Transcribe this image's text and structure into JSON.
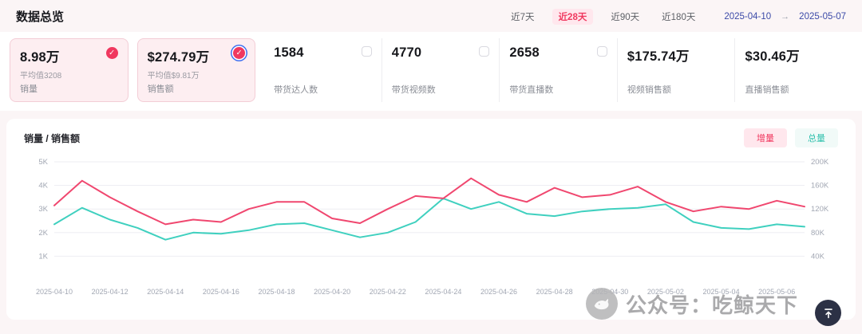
{
  "header": {
    "title": "数据总览",
    "ranges": [
      {
        "label": "近7天",
        "active": false
      },
      {
        "label": "近28天",
        "active": true
      },
      {
        "label": "近90天",
        "active": false
      },
      {
        "label": "近180天",
        "active": false
      }
    ],
    "date_start": "2025-04-10",
    "date_separator": "→",
    "date_end": "2025-05-07"
  },
  "cards": [
    {
      "value": "8.98万",
      "sub": "平均值3208",
      "label": "销量",
      "checked": true,
      "highlight": true
    },
    {
      "value": "$274.79万",
      "sub": "平均值$9.81万",
      "label": "销售额",
      "checked": true,
      "highlight": true
    },
    {
      "value": "1584",
      "sub": "",
      "label": "带货达人数",
      "checked": false,
      "highlight": false
    },
    {
      "value": "4770",
      "sub": "",
      "label": "带货视频数",
      "checked": false,
      "highlight": false
    },
    {
      "value": "2658",
      "sub": "",
      "label": "带货直播数",
      "checked": false,
      "highlight": false
    },
    {
      "value": "$175.74万",
      "sub": "",
      "label": "视频销售额",
      "checked": null,
      "highlight": false
    },
    {
      "value": "$30.46万",
      "sub": "",
      "label": "直播销售额",
      "checked": null,
      "highlight": false
    }
  ],
  "chart": {
    "title": "销量 / 销售额",
    "toggles": [
      {
        "label": "增量",
        "active": true
      },
      {
        "label": "总量",
        "active": false
      }
    ]
  },
  "chart_data": {
    "type": "line",
    "x": [
      "2025-04-10",
      "2025-04-11",
      "2025-04-12",
      "2025-04-13",
      "2025-04-14",
      "2025-04-15",
      "2025-04-16",
      "2025-04-17",
      "2025-04-18",
      "2025-04-19",
      "2025-04-20",
      "2025-04-21",
      "2025-04-22",
      "2025-04-23",
      "2025-04-24",
      "2025-04-25",
      "2025-04-26",
      "2025-04-27",
      "2025-04-28",
      "2025-04-29",
      "2025-04-30",
      "2025-05-01",
      "2025-05-02",
      "2025-05-03",
      "2025-05-04",
      "2025-05-05",
      "2025-05-06",
      "2025-05-07"
    ],
    "x_label_every": 2,
    "series": [
      {
        "name": "销量",
        "axis": "left",
        "color": "#f0476f",
        "values": [
          3150,
          4200,
          3500,
          2900,
          2350,
          2550,
          2450,
          3000,
          3300,
          3300,
          2600,
          2400,
          3000,
          3550,
          3450,
          4300,
          3600,
          3300,
          3900,
          3500,
          3600,
          3950,
          3300,
          2900,
          3100,
          3000,
          3350,
          3100
        ]
      },
      {
        "name": "销售额",
        "axis": "right",
        "color": "#3fd0bf",
        "values": [
          94000,
          122000,
          102000,
          88000,
          68000,
          80000,
          78000,
          84000,
          94000,
          96000,
          84000,
          72000,
          80000,
          98000,
          138000,
          120000,
          132000,
          112000,
          108000,
          116000,
          120000,
          122000,
          128000,
          98000,
          88000,
          86000,
          94000,
          90000
        ]
      }
    ],
    "left_axis": {
      "min": 0,
      "max": 5000,
      "ticks": [
        {
          "v": 1000,
          "label": "1K"
        },
        {
          "v": 2000,
          "label": "2K"
        },
        {
          "v": 3000,
          "label": "3K"
        },
        {
          "v": 4000,
          "label": "4K"
        },
        {
          "v": 5000,
          "label": "5K"
        }
      ]
    },
    "right_axis": {
      "min": 0,
      "max": 200000,
      "ticks": [
        {
          "v": 40000,
          "label": "40K"
        },
        {
          "v": 80000,
          "label": "80K"
        },
        {
          "v": 120000,
          "label": "120K"
        },
        {
          "v": 160000,
          "label": "160K"
        },
        {
          "v": 200000,
          "label": "200K"
        }
      ]
    },
    "grid": true,
    "legend_position": "none"
  },
  "watermark": {
    "text": "公众号：吃鲸天下"
  },
  "icons": {
    "check": "✓"
  },
  "colors": {
    "accent": "#f0385f",
    "accent_bg": "#ffe7ed",
    "teal": "#3fd0bf",
    "line_sales_volume": "#f0476f",
    "line_sales_amount": "#3fd0bf",
    "checkbox_ring": "#3e6ff0",
    "card_highlight_bg": "#fdeef1",
    "back_top_bg": "#2c3145"
  }
}
